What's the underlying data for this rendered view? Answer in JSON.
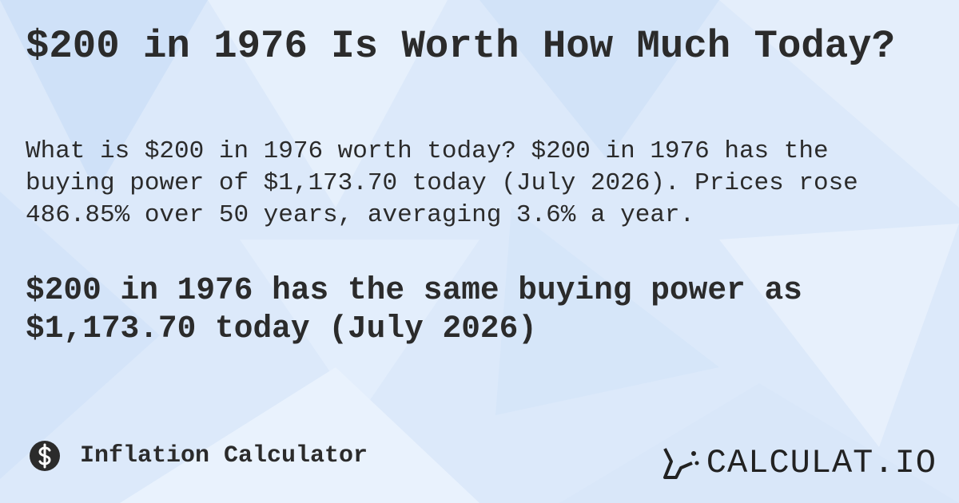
{
  "title": "$200 in 1976 Is Worth How Much Today?",
  "description": "What is $200 in 1976 worth today? $200 in 1976 has the buying power of $1,173.70 today (July 2026). Prices rose 486.85% over 50 years, averaging 3.6% a year.",
  "highlight": "$200 in 1976 has the same buying power as $1,173.70 today (July 2026)",
  "footer": {
    "label": "Inflation Calculator",
    "brand": "CALCULAT.IO"
  }
}
